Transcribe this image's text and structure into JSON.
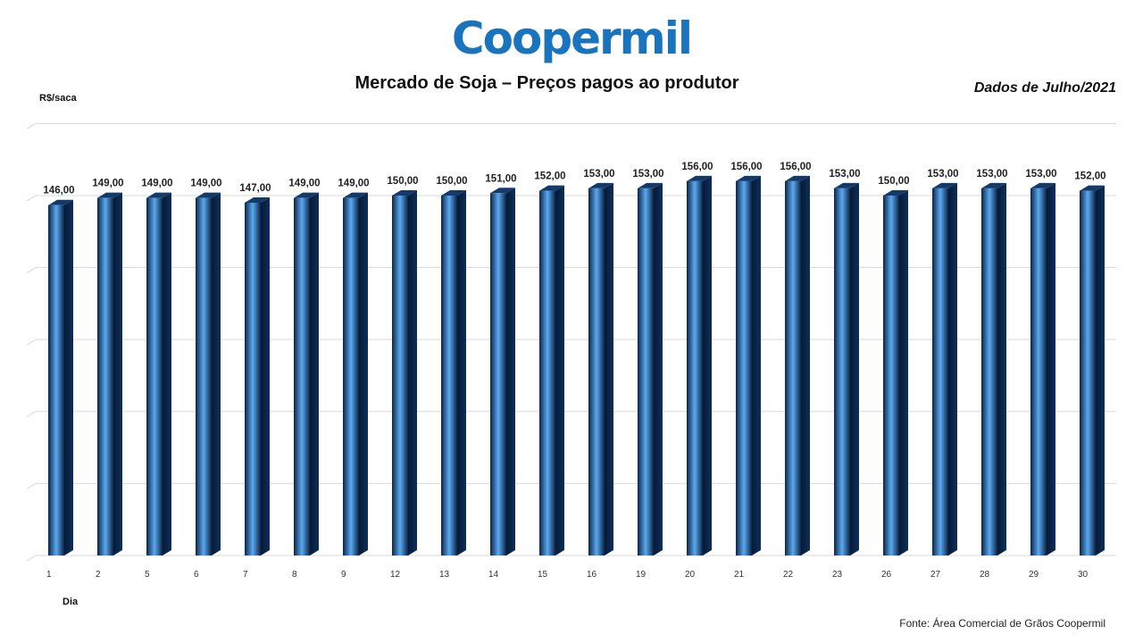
{
  "header": {
    "logo_text": "Coopermil",
    "title": "Mercado de Soja – Preços pagos ao produtor",
    "period": "Dados de Julho/2021"
  },
  "footer": {
    "source": "Fonte: Área Comercial de Grãos Coopermil"
  },
  "colors": {
    "logo": "#1a74bd",
    "bar_dark": "#0a2447",
    "bar_light": "#5aa9f0",
    "grid": "#d9d9d9"
  },
  "chart_data": {
    "type": "bar",
    "title": "Mercado de Soja – Preços pagos ao produtor",
    "xlabel": "Dia",
    "ylabel": "R$/saca",
    "categories": [
      "1",
      "2",
      "5",
      "6",
      "7",
      "8",
      "9",
      "12",
      "13",
      "14",
      "15",
      "16",
      "19",
      "20",
      "21",
      "22",
      "23",
      "26",
      "27",
      "28",
      "29",
      "30"
    ],
    "values": [
      146,
      149,
      149,
      149,
      147,
      149,
      149,
      150,
      150,
      151,
      152,
      153,
      153,
      156,
      156,
      156,
      153,
      150,
      153,
      153,
      153,
      152
    ],
    "value_labels": [
      "146,00",
      "149,00",
      "149,00",
      "149,00",
      "147,00",
      "149,00",
      "149,00",
      "150,00",
      "150,00",
      "151,00",
      "152,00",
      "153,00",
      "153,00",
      "156,00",
      "156,00",
      "156,00",
      "153,00",
      "150,00",
      "153,00",
      "153,00",
      "153,00",
      "152,00"
    ],
    "ylim": [
      0,
      180
    ],
    "grid": true,
    "legend": "none"
  }
}
